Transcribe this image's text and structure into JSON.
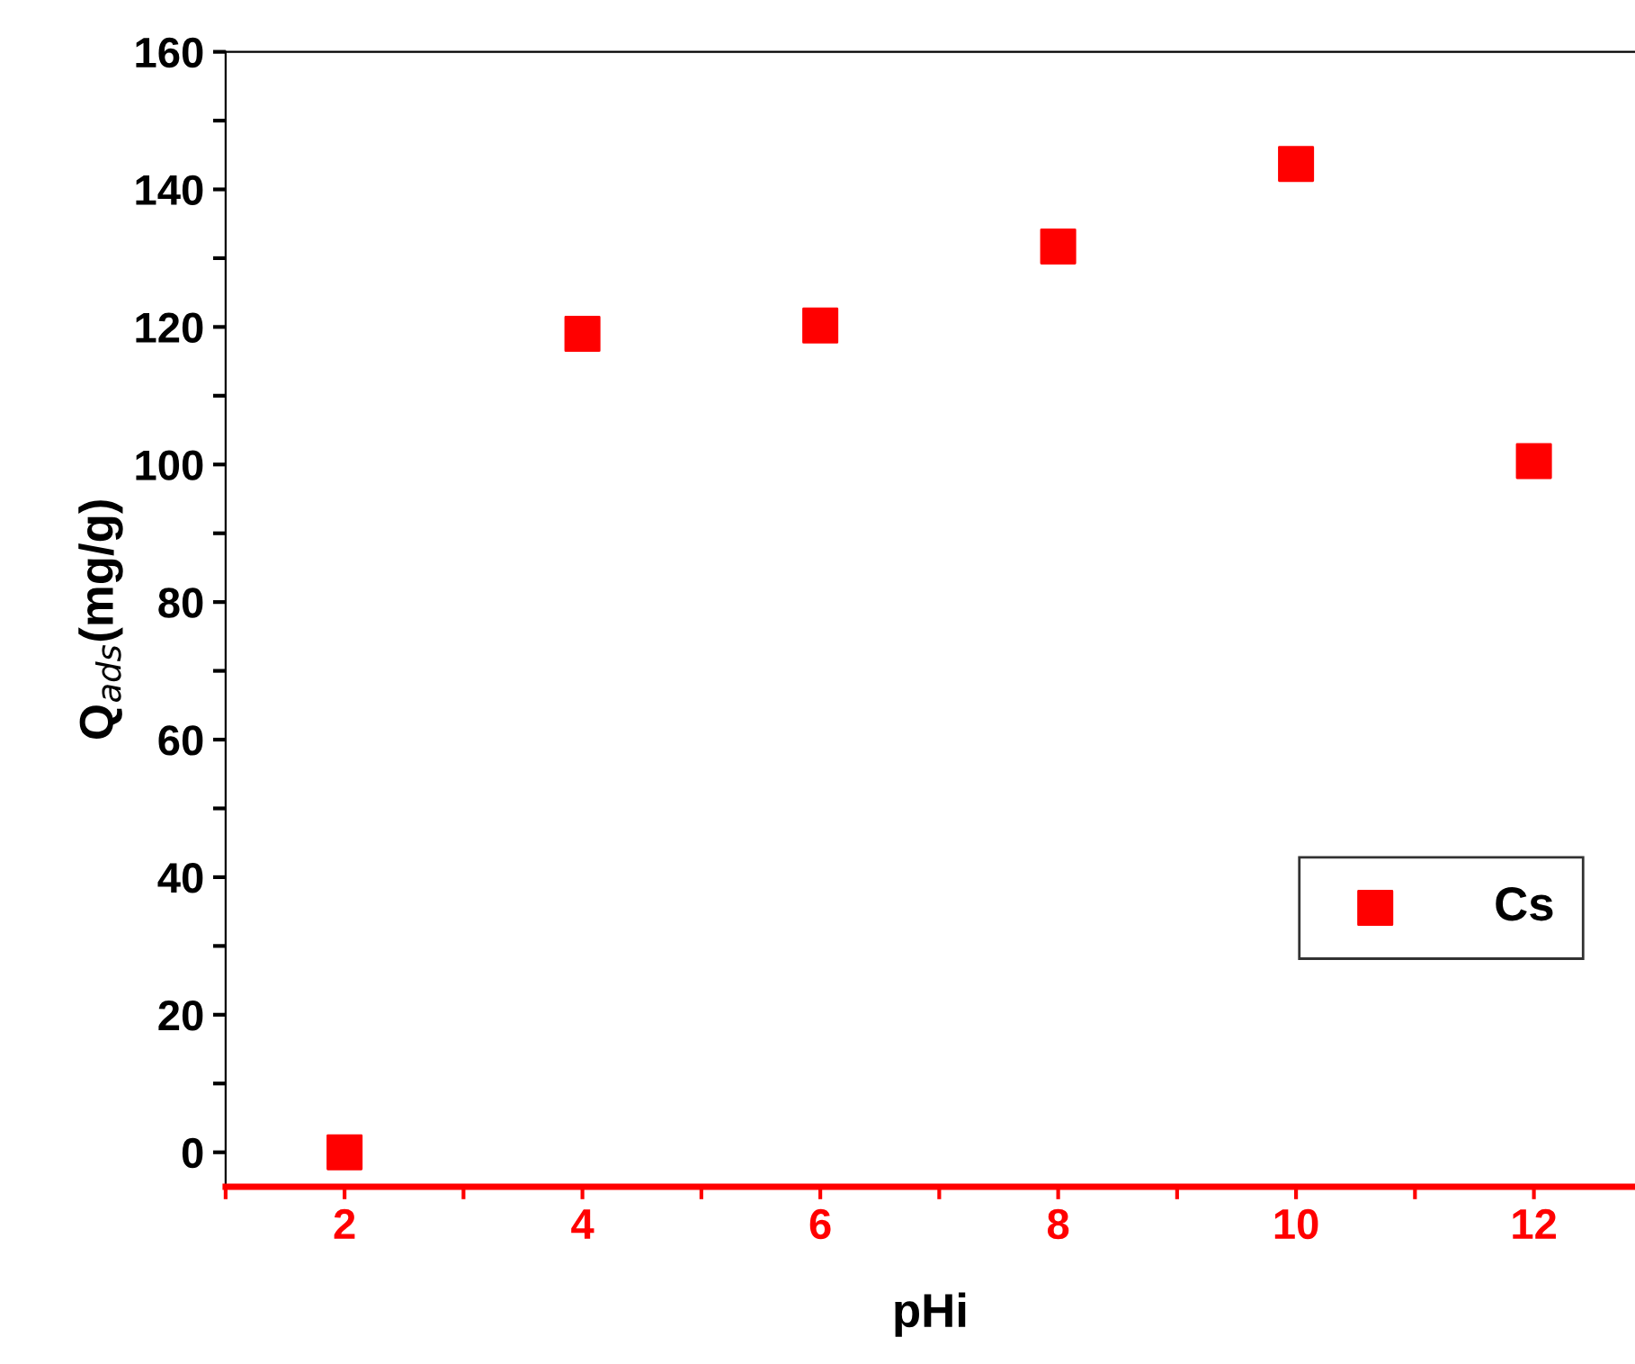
{
  "chart_data": {
    "type": "scatter",
    "xlabel": "pHi",
    "ylabel": "Q$_{ads}$(mg/g)",
    "x": [
      2,
      4,
      6,
      8,
      10,
      12
    ],
    "series": [
      {
        "name": "Cs",
        "color": "#ff0000",
        "values": [
          0,
          119,
          120.2,
          131.7,
          143.7,
          100.5
        ]
      }
    ],
    "marker": "square",
    "legend": "bottom right",
    "grid": false,
    "xlim": [
      1,
      12.85
    ],
    "ylim": [
      -5,
      160
    ],
    "xticks": [
      {
        "value": 1,
        "label": null
      },
      2,
      {
        "value": 3,
        "label": null
      },
      4,
      {
        "value": 5,
        "label": null
      },
      6,
      {
        "value": 7,
        "label": null
      },
      8,
      {
        "value": 9,
        "label": null
      },
      10,
      {
        "value": 11,
        "label": null
      },
      12
    ],
    "yticks": [
      0,
      {
        "value": 10,
        "label": null
      },
      20,
      {
        "value": 30,
        "label": null
      },
      40,
      {
        "value": 50,
        "label": null
      },
      60,
      {
        "value": 70,
        "label": null
      },
      80,
      {
        "value": 90,
        "label": null
      },
      100,
      {
        "value": 110,
        "label": null
      },
      120,
      {
        "value": 130,
        "label": null
      },
      140,
      {
        "value": 150,
        "label": null
      },
      160
    ]
  }
}
